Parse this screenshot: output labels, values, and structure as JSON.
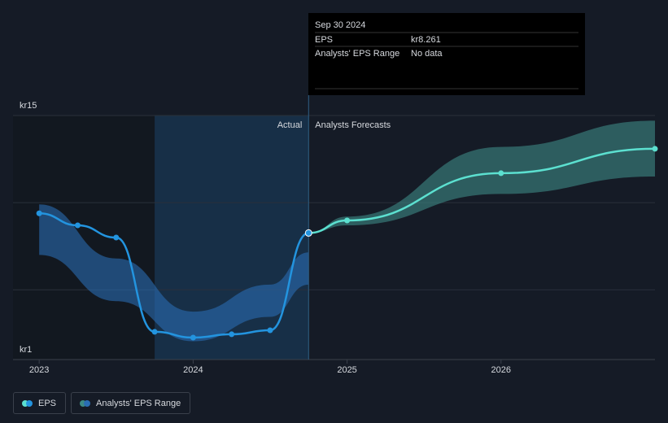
{
  "chart_data": {
    "type": "line",
    "xlim": [
      2022.83,
      2027.0
    ],
    "xticks": [
      2023,
      2024,
      2025,
      2026
    ],
    "ylim": [
      1,
      15
    ],
    "yticks": [
      {
        "value": 1,
        "label": "kr1"
      },
      {
        "value": 5,
        "label": null
      },
      {
        "value": 10,
        "label": null
      },
      {
        "value": 15,
        "label": "kr15"
      }
    ],
    "grid": true,
    "highlight": [
      2023.75,
      2024.75
    ],
    "forecast_from": 2024.75,
    "annotations": {
      "actual": "Actual",
      "forecast": "Analysts Forecasts"
    },
    "series": [
      {
        "name": "EPS",
        "color": "#2394df",
        "forecast_color": "#5ce0d0",
        "x": [
          2023,
          2023.25,
          2023.5,
          2023.75,
          2024,
          2024.25,
          2024.5,
          2024.75,
          2025,
          2026,
          2027
        ],
        "values": [
          9.39,
          8.7,
          8.0,
          2.59,
          2.26,
          2.45,
          2.68,
          8.261,
          8.98,
          11.69,
          13.09
        ]
      }
    ],
    "range": {
      "name": "Analysts' EPS Range",
      "parts": [
        {
          "color": "#2a6db3",
          "x": [
            2023,
            2023.5,
            2024,
            2024.5,
            2024.75
          ],
          "high": [
            9.9,
            6.8,
            3.75,
            5.3,
            7.15
          ],
          "low": [
            7.0,
            4.35,
            2.05,
            3.45,
            5.3
          ]
        },
        {
          "color": "#3d8a85",
          "x": [
            2024.75,
            2025,
            2026,
            2027
          ],
          "high": [
            8.26,
            9.2,
            13.2,
            14.7
          ],
          "low": [
            8.26,
            8.7,
            10.5,
            11.5
          ]
        }
      ]
    },
    "tooltip": {
      "date": "Sep 30 2024",
      "rows": [
        {
          "label": "EPS",
          "value": "kr8.261"
        },
        {
          "label": "Analysts' EPS Range",
          "value": "No data"
        }
      ]
    }
  }
}
